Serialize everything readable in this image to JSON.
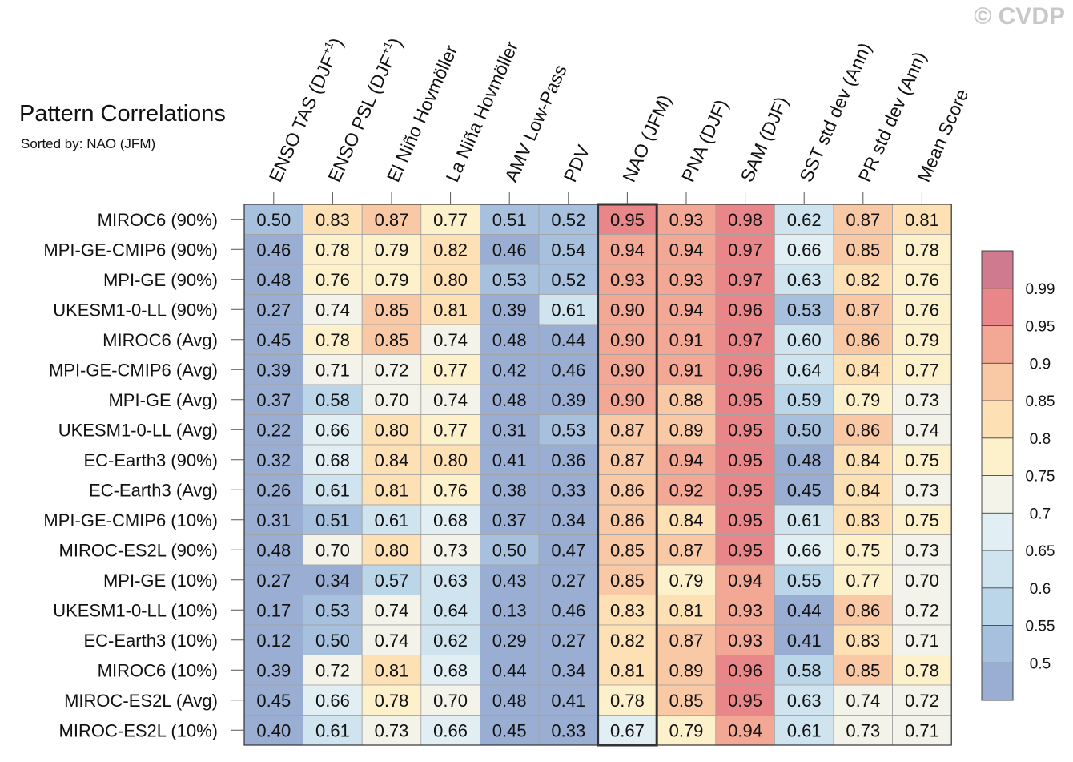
{
  "title": "Pattern Correlations",
  "subtitle": "Sorted by: NAO (JFM)",
  "watermark": "© CVDP",
  "chart_data": {
    "type": "heatmap",
    "title": "Pattern Correlations",
    "subtitle": "Sorted by: NAO (JFM)",
    "columns": [
      {
        "label": "ENSO TAS (DJF",
        "sup": "+1",
        "tail": ")"
      },
      {
        "label": "ENSO PSL (DJF",
        "sup": "+1",
        "tail": ")"
      },
      {
        "label": "El Niño Hovmöller",
        "sup": "",
        "tail": ""
      },
      {
        "label": "La Niña Hovmöller",
        "sup": "",
        "tail": ""
      },
      {
        "label": "AMV Low-Pass",
        "sup": "",
        "tail": ""
      },
      {
        "label": "PDV",
        "sup": "",
        "tail": ""
      },
      {
        "label": "NAO (JFM)",
        "sup": "",
        "tail": ""
      },
      {
        "label": "PNA (DJF)",
        "sup": "",
        "tail": ""
      },
      {
        "label": "SAM (DJF)",
        "sup": "",
        "tail": ""
      },
      {
        "label": "SST std dev (Ann)",
        "sup": "",
        "tail": ""
      },
      {
        "label": "PR std dev (Ann)",
        "sup": "",
        "tail": ""
      },
      {
        "label": "Mean Score",
        "sup": "",
        "tail": ""
      }
    ],
    "rows": [
      "MIROC6 (90%)",
      "MPI-GE-CMIP6 (90%)",
      "MPI-GE (90%)",
      "UKESM1-0-LL (90%)",
      "MIROC6 (Avg)",
      "MPI-GE-CMIP6 (Avg)",
      "MPI-GE (Avg)",
      "UKESM1-0-LL (Avg)",
      "EC-Earth3 (90%)",
      "EC-Earth3 (Avg)",
      "MPI-GE-CMIP6 (10%)",
      "MIROC-ES2L (90%)",
      "MPI-GE (10%)",
      "UKESM1-0-LL (10%)",
      "EC-Earth3 (10%)",
      "MIROC6 (10%)",
      "MIROC-ES2L (Avg)",
      "MIROC-ES2L (10%)"
    ],
    "values": [
      [
        "0.50",
        "0.83",
        "0.87",
        "0.77",
        "0.51",
        "0.52",
        "0.95",
        "0.93",
        "0.98",
        "0.62",
        "0.87",
        "0.81"
      ],
      [
        "0.46",
        "0.78",
        "0.79",
        "0.82",
        "0.46",
        "0.54",
        "0.94",
        "0.94",
        "0.97",
        "0.66",
        "0.85",
        "0.78"
      ],
      [
        "0.48",
        "0.76",
        "0.79",
        "0.80",
        "0.53",
        "0.52",
        "0.93",
        "0.93",
        "0.97",
        "0.63",
        "0.82",
        "0.76"
      ],
      [
        "0.27",
        "0.74",
        "0.85",
        "0.81",
        "0.39",
        "0.61",
        "0.90",
        "0.94",
        "0.96",
        "0.53",
        "0.87",
        "0.76"
      ],
      [
        "0.45",
        "0.78",
        "0.85",
        "0.74",
        "0.48",
        "0.44",
        "0.90",
        "0.91",
        "0.97",
        "0.60",
        "0.86",
        "0.79"
      ],
      [
        "0.39",
        "0.71",
        "0.72",
        "0.77",
        "0.42",
        "0.46",
        "0.90",
        "0.91",
        "0.96",
        "0.64",
        "0.84",
        "0.77"
      ],
      [
        "0.37",
        "0.58",
        "0.70",
        "0.74",
        "0.48",
        "0.39",
        "0.90",
        "0.88",
        "0.95",
        "0.59",
        "0.79",
        "0.73"
      ],
      [
        "0.22",
        "0.66",
        "0.80",
        "0.77",
        "0.31",
        "0.53",
        "0.87",
        "0.89",
        "0.95",
        "0.50",
        "0.86",
        "0.74"
      ],
      [
        "0.32",
        "0.68",
        "0.84",
        "0.80",
        "0.41",
        "0.36",
        "0.87",
        "0.94",
        "0.95",
        "0.48",
        "0.84",
        "0.75"
      ],
      [
        "0.26",
        "0.61",
        "0.81",
        "0.76",
        "0.38",
        "0.33",
        "0.86",
        "0.92",
        "0.95",
        "0.45",
        "0.84",
        "0.73"
      ],
      [
        "0.31",
        "0.51",
        "0.61",
        "0.68",
        "0.37",
        "0.34",
        "0.86",
        "0.84",
        "0.95",
        "0.61",
        "0.83",
        "0.75"
      ],
      [
        "0.48",
        "0.70",
        "0.80",
        "0.73",
        "0.50",
        "0.47",
        "0.85",
        "0.87",
        "0.95",
        "0.66",
        "0.75",
        "0.73"
      ],
      [
        "0.27",
        "0.34",
        "0.57",
        "0.63",
        "0.43",
        "0.27",
        "0.85",
        "0.79",
        "0.94",
        "0.55",
        "0.77",
        "0.70"
      ],
      [
        "0.17",
        "0.53",
        "0.74",
        "0.64",
        "0.13",
        "0.46",
        "0.83",
        "0.81",
        "0.93",
        "0.44",
        "0.86",
        "0.72"
      ],
      [
        "0.12",
        "0.50",
        "0.74",
        "0.62",
        "0.29",
        "0.27",
        "0.82",
        "0.87",
        "0.93",
        "0.41",
        "0.83",
        "0.71"
      ],
      [
        "0.39",
        "0.72",
        "0.81",
        "0.68",
        "0.44",
        "0.34",
        "0.81",
        "0.89",
        "0.96",
        "0.58",
        "0.85",
        "0.78"
      ],
      [
        "0.45",
        "0.66",
        "0.78",
        "0.70",
        "0.48",
        "0.41",
        "0.78",
        "0.85",
        "0.95",
        "0.63",
        "0.74",
        "0.72"
      ],
      [
        "0.40",
        "0.61",
        "0.73",
        "0.66",
        "0.45",
        "0.33",
        "0.67",
        "0.79",
        "0.94",
        "0.61",
        "0.73",
        "0.71"
      ]
    ],
    "sorted_column": "NAO (JFM)",
    "colorbar": {
      "levels": [
        0.5,
        0.55,
        0.6,
        0.65,
        0.7,
        0.75,
        0.8,
        0.85,
        0.9,
        0.95,
        0.99
      ],
      "tick_labels": [
        "0.5",
        "0.55",
        "0.6",
        "0.65",
        "0.7",
        "0.75",
        "0.8",
        "0.85",
        "0.9",
        "0.95",
        "0.99"
      ],
      "colors": [
        "#9aaed3",
        "#a6c0de",
        "#bcd6e9",
        "#cfe4ef",
        "#e1eff5",
        "#f3f3ea",
        "#fdf1cc",
        "#fde0b4",
        "#f9c8a4",
        "#f3a795",
        "#e9868a",
        "#d07a90"
      ]
    }
  }
}
